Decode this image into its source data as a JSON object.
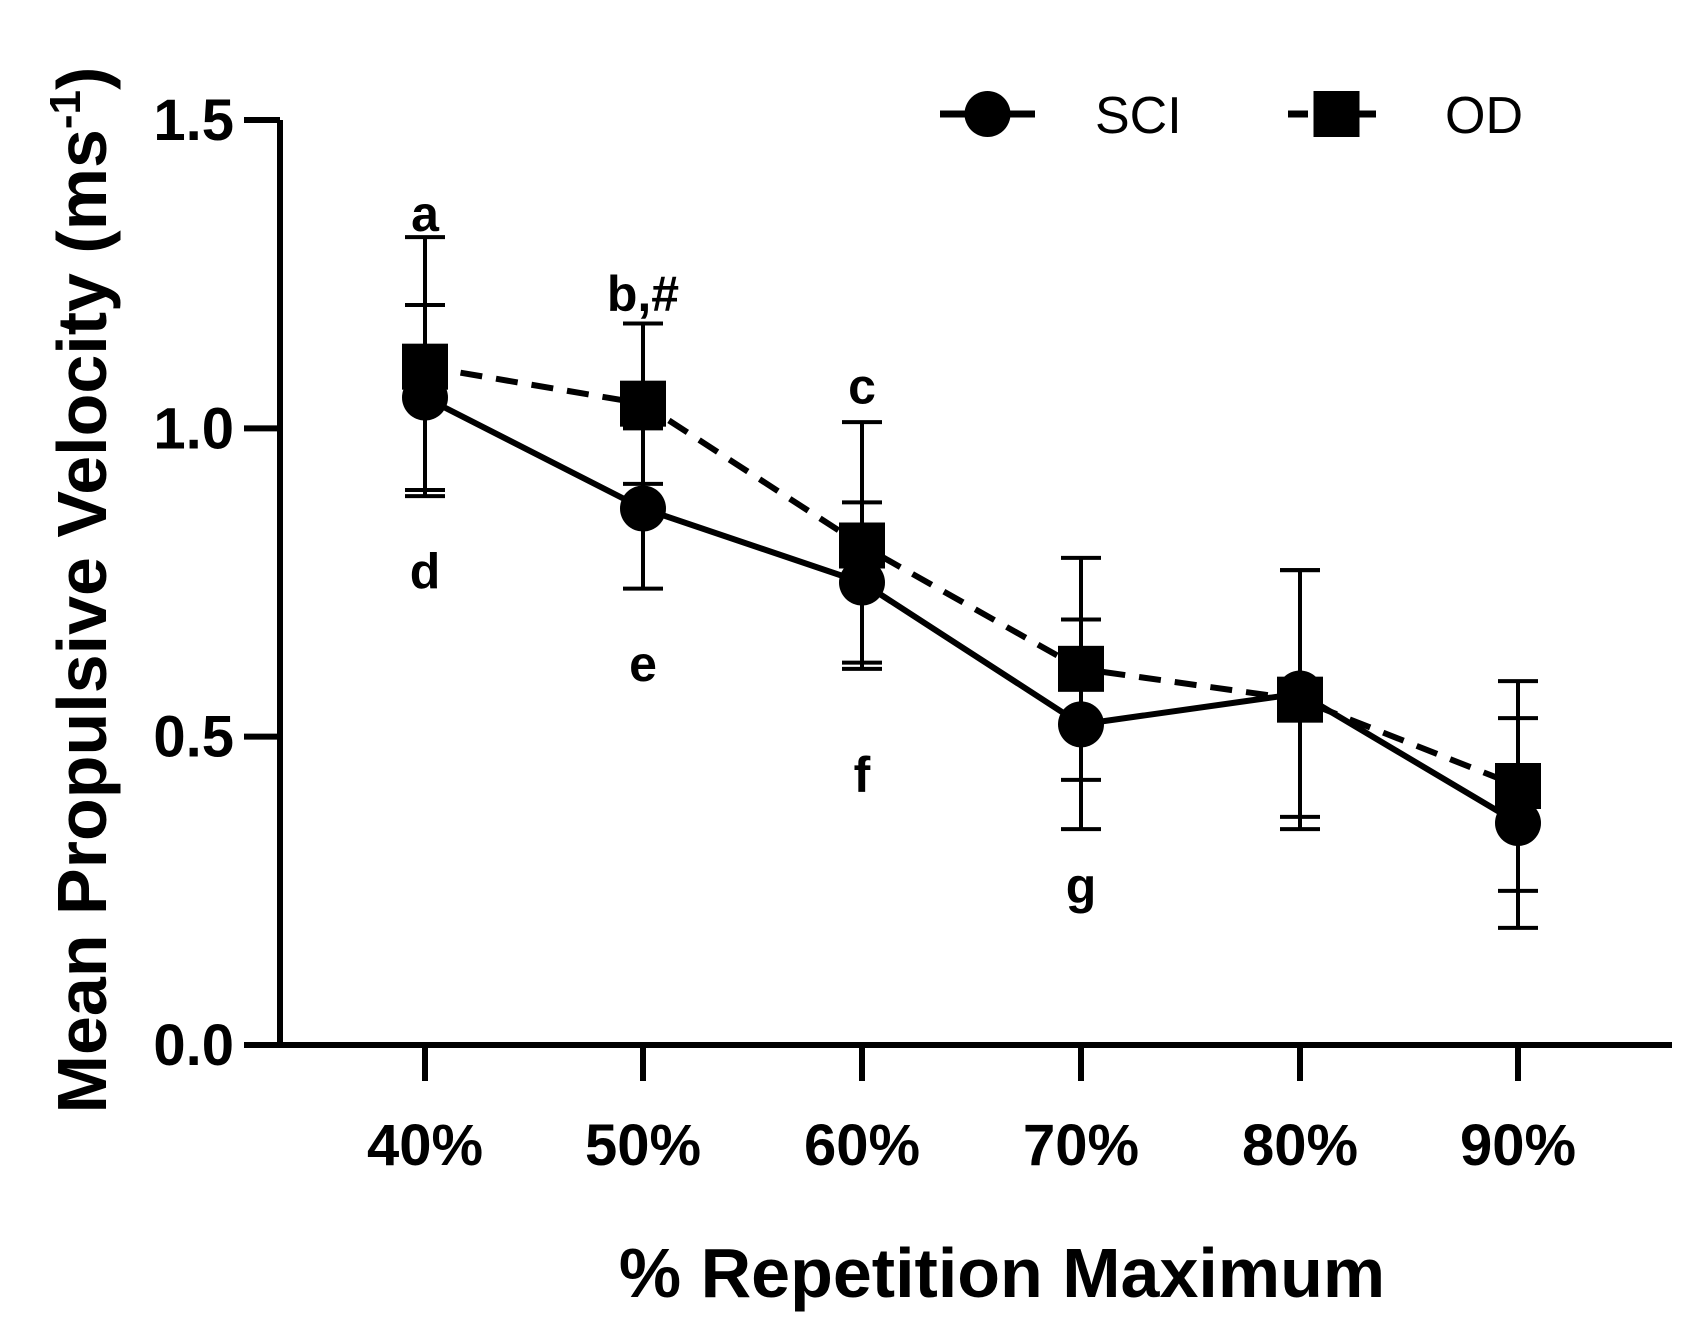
{
  "chart_data": {
    "type": "line",
    "title": "",
    "xlabel": "% Repetition Maximum",
    "ylabel": "Mean Propulsive Velocity (ms",
    "ylabel_superscript": "-1",
    "ylabel_close": ")",
    "ylim": [
      0,
      1.5
    ],
    "yticks": [
      "0.0",
      "0.5",
      "1.0",
      "1.5"
    ],
    "ytick_values": [
      0,
      0.5,
      1.0,
      1.5
    ],
    "categories": [
      "40%",
      "50%",
      "60%",
      "70%",
      "80%",
      "90%"
    ],
    "legend_position": "top-right",
    "series": [
      {
        "name": "SCI",
        "marker": "circle",
        "line": "solid",
        "values": [
          1.05,
          0.87,
          0.75,
          0.52,
          0.57,
          0.36
        ],
        "error": [
          0.15,
          0.13,
          0.13,
          0.17,
          0.2,
          0.17
        ]
      },
      {
        "name": "OD",
        "marker": "square",
        "line": "dashed",
        "values": [
          1.1,
          1.04,
          0.81,
          0.61,
          0.56,
          0.42
        ],
        "error": [
          0.21,
          0.13,
          0.2,
          0.18,
          0.21,
          0.17
        ]
      }
    ],
    "annotations": [
      {
        "text": "a",
        "category": "40%",
        "value": 1.32
      },
      {
        "text": "b,#",
        "category": "50%",
        "value": 1.19
      },
      {
        "text": "c",
        "category": "60%",
        "value": 1.04
      },
      {
        "text": "d",
        "category": "40%",
        "value": 0.74
      },
      {
        "text": "e",
        "category": "50%",
        "value": 0.59
      },
      {
        "text": "f",
        "category": "60%",
        "value": 0.41
      },
      {
        "text": "g",
        "category": "70%",
        "value": 0.23
      }
    ]
  }
}
